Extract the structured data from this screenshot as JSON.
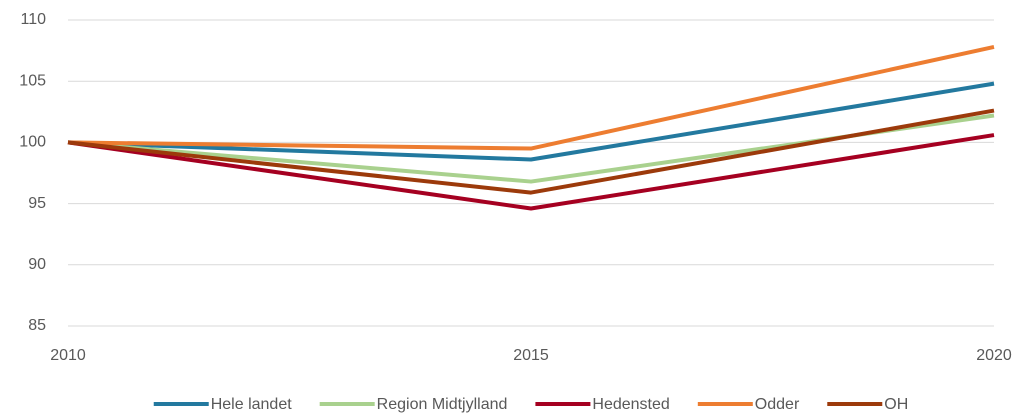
{
  "chart_data": {
    "type": "line",
    "x": [
      2010,
      2015,
      2020
    ],
    "xlim": [
      2010,
      2020
    ],
    "xticks": [
      2010,
      2015,
      2020
    ],
    "ylim": [
      85,
      110
    ],
    "yticks": [
      85,
      90,
      95,
      100,
      105,
      110
    ],
    "grid": true,
    "legend": "bottom",
    "series": [
      {
        "name": "Hele landet",
        "color": "#23799f",
        "values": [
          100,
          98.6,
          104.8
        ]
      },
      {
        "name": "Region Midtjylland",
        "color": "#a9d18e",
        "values": [
          100,
          96.8,
          102.2
        ]
      },
      {
        "name": "Hedensted",
        "color": "#a50021",
        "values": [
          100,
          94.6,
          100.6
        ]
      },
      {
        "name": "Odder",
        "color": "#ed7d31",
        "values": [
          100,
          99.5,
          107.8
        ]
      },
      {
        "name": "OH",
        "color": "#9c3a0b",
        "values": [
          100,
          95.9,
          102.6
        ]
      }
    ]
  }
}
